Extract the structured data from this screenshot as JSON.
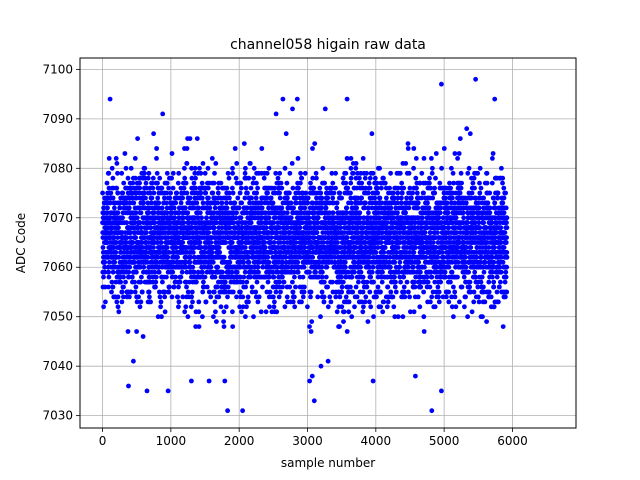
{
  "chart_data": {
    "type": "scatter",
    "title": "channel058 higain raw data",
    "xlabel": "sample number",
    "ylabel": "ADC Code",
    "xlim": [
      -330,
      6930
    ],
    "ylim": [
      7027.5,
      7102.3
    ],
    "xticks": [
      0,
      1000,
      2000,
      3000,
      4000,
      5000,
      6000
    ],
    "yticks": [
      7030,
      7040,
      7050,
      7060,
      7070,
      7080,
      7090,
      7100
    ],
    "grid": true,
    "marker_color": "#0000ff",
    "series": [
      {
        "count": 5920,
        "x_range": [
          0,
          5920
        ],
        "y_center": 7066,
        "y_bulk_range": [
          7048,
          7083
        ],
        "y_min": 7031,
        "y_max": 7098,
        "outliers": [
          {
            "x": 110,
            "y": 7094
          },
          {
            "x": 880,
            "y": 7091
          },
          {
            "x": 2640,
            "y": 7094
          },
          {
            "x": 2540,
            "y": 7091
          },
          {
            "x": 2780,
            "y": 7092
          },
          {
            "x": 2850,
            "y": 7094
          },
          {
            "x": 3260,
            "y": 7092
          },
          {
            "x": 3580,
            "y": 7094
          },
          {
            "x": 4960,
            "y": 7097
          },
          {
            "x": 5460,
            "y": 7098
          },
          {
            "x": 5740,
            "y": 7094
          },
          {
            "x": 1830,
            "y": 7031
          },
          {
            "x": 2050,
            "y": 7031
          },
          {
            "x": 4820,
            "y": 7031
          },
          {
            "x": 3100,
            "y": 7033
          },
          {
            "x": 960,
            "y": 7035
          },
          {
            "x": 650,
            "y": 7035
          },
          {
            "x": 380,
            "y": 7036
          },
          {
            "x": 4960,
            "y": 7035
          },
          {
            "x": 1300,
            "y": 7037
          },
          {
            "x": 1560,
            "y": 7037
          },
          {
            "x": 1790,
            "y": 7037
          },
          {
            "x": 3030,
            "y": 7037
          },
          {
            "x": 3070,
            "y": 7038
          },
          {
            "x": 3960,
            "y": 7037
          },
          {
            "x": 4580,
            "y": 7038
          }
        ]
      }
    ]
  }
}
